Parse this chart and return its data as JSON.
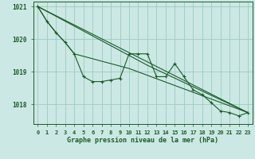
{
  "title": "Graphe pression niveau de la mer (hPa)",
  "bg_color": "#cce8e4",
  "grid_color": "#99ccbb",
  "line_color": "#1a5c28",
  "hours": [
    0,
    1,
    2,
    3,
    4,
    5,
    6,
    7,
    8,
    9,
    10,
    11,
    12,
    13,
    14,
    15,
    16,
    17,
    18,
    19,
    20,
    21,
    22,
    23
  ],
  "series_main": [
    1021.0,
    1020.55,
    1020.2,
    1019.9,
    1019.55,
    1018.85,
    1018.7,
    1018.7,
    1018.75,
    1018.8,
    1019.55,
    1019.55,
    1019.55,
    1018.85,
    1018.85,
    1019.25,
    1018.85,
    1018.45,
    1018.3,
    1018.05,
    1017.8,
    1017.75,
    1017.65,
    1017.75
  ],
  "series_a": [
    1021.0,
    1020.55,
    1020.2,
    1019.9,
    1019.55,
    null,
    null,
    null,
    null,
    null,
    1019.1,
    null,
    null,
    null,
    null,
    null,
    null,
    null,
    null,
    null,
    null,
    null,
    null,
    1017.75
  ],
  "series_b": [
    1021.0,
    null,
    null,
    null,
    null,
    null,
    null,
    null,
    null,
    null,
    null,
    null,
    1019.2,
    null,
    null,
    null,
    null,
    null,
    null,
    null,
    null,
    null,
    null,
    1017.75
  ],
  "series_c": [
    1021.0,
    null,
    null,
    null,
    null,
    null,
    null,
    null,
    null,
    null,
    null,
    null,
    null,
    null,
    null,
    null,
    null,
    null,
    null,
    null,
    null,
    null,
    null,
    1017.75
  ],
  "ylim": [
    1017.4,
    1021.15
  ],
  "yticks": [
    1018,
    1019,
    1020,
    1021
  ],
  "xticks": [
    0,
    1,
    2,
    3,
    4,
    5,
    6,
    7,
    8,
    9,
    10,
    11,
    12,
    13,
    14,
    15,
    16,
    17,
    18,
    19,
    20,
    21,
    22,
    23
  ]
}
